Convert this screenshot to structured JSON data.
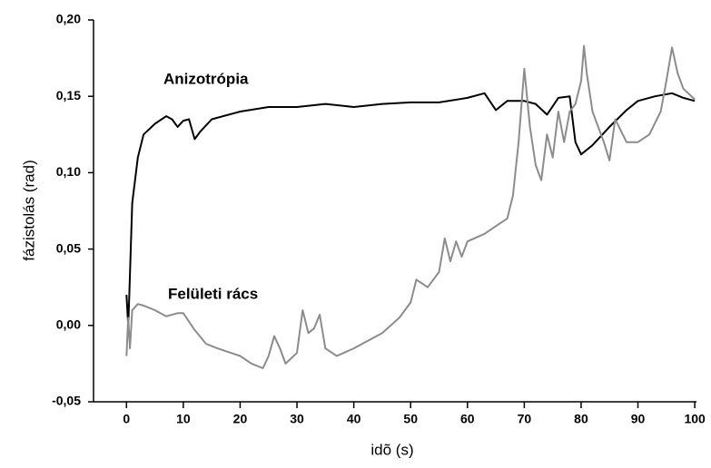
{
  "chart_data": {
    "type": "line",
    "x_label": "idõ (s)",
    "y_label": "fázistolás (rad)",
    "xlim": [
      -5.8,
      100.3
    ],
    "ylim": [
      -0.05,
      0.2
    ],
    "xticks": [
      0,
      10,
      20,
      30,
      40,
      50,
      60,
      70,
      80,
      90,
      100
    ],
    "yticks": [
      {
        "value": -0.05,
        "label": "-0,05"
      },
      {
        "value": 0,
        "label": "0,00"
      },
      {
        "value": 0.05,
        "label": "0,05"
      },
      {
        "value": 0.1,
        "label": "0,10"
      },
      {
        "value": 0.15,
        "label": "0,15"
      },
      {
        "value": 0.2,
        "label": "0,20"
      }
    ],
    "series": [
      {
        "name": "Anizotrópia",
        "color": "#000000",
        "x": [
          0,
          0.3,
          0.5,
          1,
          2,
          3,
          5,
          7,
          8,
          9,
          10,
          11,
          12,
          13,
          15,
          20,
          25,
          30,
          35,
          40,
          45,
          50,
          55,
          60,
          63,
          65,
          67,
          70,
          72,
          74,
          76,
          78,
          79,
          80,
          82,
          85,
          88,
          90,
          93,
          96,
          98,
          100
        ],
        "values": [
          0.02,
          0.0,
          0.02,
          0.08,
          0.11,
          0.125,
          0.132,
          0.137,
          0.135,
          0.13,
          0.134,
          0.135,
          0.122,
          0.127,
          0.135,
          0.14,
          0.143,
          0.143,
          0.145,
          0.143,
          0.145,
          0.146,
          0.146,
          0.149,
          0.152,
          0.141,
          0.147,
          0.147,
          0.145,
          0.138,
          0.149,
          0.15,
          0.12,
          0.112,
          0.118,
          0.13,
          0.141,
          0.147,
          0.15,
          0.152,
          0.149,
          0.147
        ]
      },
      {
        "name": "Felületi rács",
        "color": "#8c8c8c",
        "x": [
          0,
          0.3,
          0.6,
          1,
          2,
          3,
          5,
          7,
          9,
          10,
          12,
          14,
          16,
          20,
          22,
          24,
          25,
          26,
          27,
          28,
          30,
          31,
          32,
          33,
          34,
          35,
          37,
          40,
          45,
          48,
          50,
          51,
          53,
          55,
          56,
          57,
          58,
          59,
          60,
          63,
          65,
          67,
          68,
          69,
          70,
          71,
          72,
          73,
          74,
          75,
          76,
          77,
          78,
          79,
          80,
          80.5,
          81,
          82,
          84,
          85,
          86,
          88,
          90,
          92,
          94,
          95,
          96,
          97,
          98,
          100
        ],
        "values": [
          -0.02,
          0.005,
          -0.015,
          0.01,
          0.014,
          0.013,
          0.01,
          0.006,
          0.008,
          0.008,
          -0.003,
          -0.012,
          -0.015,
          -0.02,
          -0.025,
          -0.028,
          -0.02,
          -0.007,
          -0.015,
          -0.025,
          -0.018,
          0.01,
          -0.005,
          -0.002,
          0.007,
          -0.015,
          -0.02,
          -0.015,
          -0.005,
          0.005,
          0.015,
          0.03,
          0.025,
          0.035,
          0.057,
          0.042,
          0.055,
          0.045,
          0.055,
          0.06,
          0.065,
          0.07,
          0.085,
          0.12,
          0.168,
          0.13,
          0.105,
          0.095,
          0.125,
          0.11,
          0.14,
          0.12,
          0.14,
          0.145,
          0.16,
          0.183,
          0.165,
          0.14,
          0.12,
          0.108,
          0.135,
          0.12,
          0.12,
          0.125,
          0.14,
          0.16,
          0.182,
          0.165,
          0.155,
          0.148
        ]
      }
    ]
  }
}
